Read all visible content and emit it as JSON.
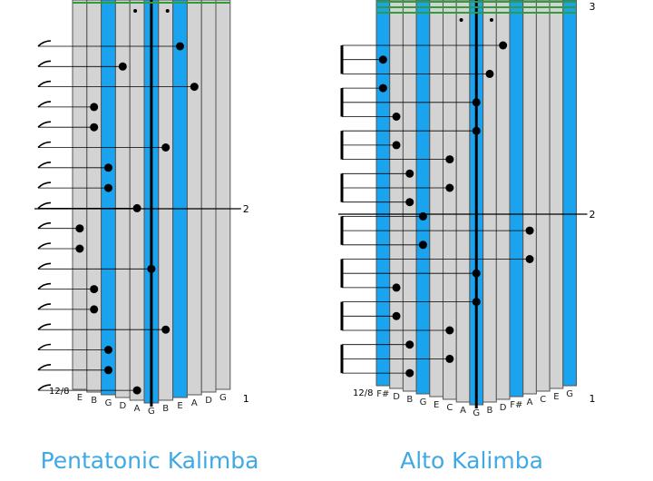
{
  "pentatonic": {
    "title": "Pentatonic Kalimba",
    "time_signature": "12/8",
    "tine_notes": [
      "E",
      "B",
      "G",
      "D",
      "A",
      "G",
      "B",
      "E",
      "A",
      "D",
      "G"
    ],
    "tine_colors": [
      "gray",
      "gray",
      "blue",
      "gray",
      "gray",
      "blue",
      "gray",
      "blue",
      "gray",
      "gray",
      "gray"
    ],
    "measure_numbers": [
      "1",
      "2"
    ],
    "notes": [
      {
        "tine": 8,
        "row": 1
      },
      {
        "tine": 4,
        "row": 2
      },
      {
        "tine": 9,
        "row": 3
      },
      {
        "tine": 2,
        "row": 4
      },
      {
        "tine": 2,
        "row": 5
      },
      {
        "tine": 7,
        "row": 6
      },
      {
        "tine": 3,
        "row": 7
      },
      {
        "tine": 3,
        "row": 8
      },
      {
        "tine": 5,
        "row": 9
      },
      {
        "tine": 1,
        "row": 10
      },
      {
        "tine": 1,
        "row": 11
      },
      {
        "tine": 6,
        "row": 12
      },
      {
        "tine": 2,
        "row": 13
      },
      {
        "tine": 2,
        "row": 14
      },
      {
        "tine": 7,
        "row": 15
      },
      {
        "tine": 3,
        "row": 16
      },
      {
        "tine": 3,
        "row": 17
      },
      {
        "tine": 5,
        "row": 18
      }
    ]
  },
  "alto": {
    "title": "Alto Kalimba",
    "time_signature": "12/8",
    "tine_notes": [
      "F#",
      "D",
      "B",
      "G",
      "E",
      "C",
      "A",
      "G",
      "B",
      "D",
      "F#",
      "A",
      "C",
      "E",
      "G"
    ],
    "tine_colors": [
      "blue",
      "gray",
      "gray",
      "blue",
      "gray",
      "gray",
      "gray",
      "blue",
      "gray",
      "gray",
      "blue",
      "gray",
      "gray",
      "gray",
      "blue"
    ],
    "measure_numbers": [
      "1",
      "2",
      "3"
    ],
    "notes": [
      {
        "tine": 10,
        "row": 1
      },
      {
        "tine": 1,
        "row": 2
      },
      {
        "tine": 9,
        "row": 3
      },
      {
        "tine": 1,
        "row": 4
      },
      {
        "tine": 8,
        "row": 5
      },
      {
        "tine": 2,
        "row": 6
      },
      {
        "tine": 8,
        "row": 7
      },
      {
        "tine": 2,
        "row": 8
      },
      {
        "tine": 6,
        "row": 9
      },
      {
        "tine": 3,
        "row": 10
      },
      {
        "tine": 6,
        "row": 11
      },
      {
        "tine": 3,
        "row": 12
      },
      {
        "tine": 4,
        "row": 13
      },
      {
        "tine": 12,
        "row": 14
      },
      {
        "tine": 4,
        "row": 15
      },
      {
        "tine": 12,
        "row": 16
      },
      {
        "tine": 8,
        "row": 17
      },
      {
        "tine": 2,
        "row": 18
      },
      {
        "tine": 8,
        "row": 19
      },
      {
        "tine": 2,
        "row": 20
      },
      {
        "tine": 6,
        "row": 21
      },
      {
        "tine": 3,
        "row": 22
      },
      {
        "tine": 6,
        "row": 23
      },
      {
        "tine": 3,
        "row": 24
      }
    ]
  },
  "colors": {
    "blue_tine": "#1aa3ef",
    "gray_tine": "#d3d3d3",
    "outline": "#555555",
    "green_line": "#2e9e3a",
    "title": "#3fa9e6"
  }
}
